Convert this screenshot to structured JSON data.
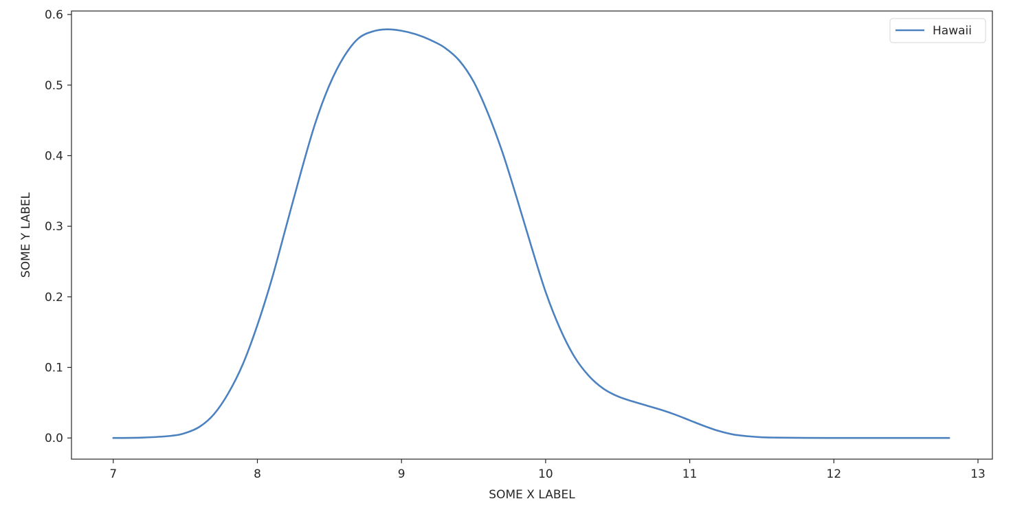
{
  "chart_data": {
    "type": "line",
    "title": "",
    "xlabel": "SOME X LABEL",
    "ylabel": "SOME Y LABEL",
    "xlim": [
      6.71,
      13.1
    ],
    "ylim": [
      -0.03,
      0.605
    ],
    "xticks": [
      7,
      8,
      9,
      10,
      11,
      12,
      13
    ],
    "yticks": [
      0.0,
      0.1,
      0.2,
      0.3,
      0.4,
      0.5,
      0.6
    ],
    "grid": false,
    "legend_position": "top-right",
    "series": [
      {
        "name": "Hawaii",
        "color": "#4c81c0",
        "x": [
          7.0,
          7.2,
          7.4,
          7.5,
          7.6,
          7.7,
          7.8,
          7.9,
          8.0,
          8.1,
          8.2,
          8.3,
          8.4,
          8.5,
          8.6,
          8.7,
          8.8,
          8.9,
          9.0,
          9.1,
          9.2,
          9.3,
          9.4,
          9.5,
          9.6,
          9.7,
          9.8,
          9.9,
          10.0,
          10.1,
          10.2,
          10.3,
          10.4,
          10.5,
          10.6,
          10.7,
          10.8,
          10.9,
          11.0,
          11.1,
          11.2,
          11.3,
          11.4,
          11.5,
          11.6,
          11.8,
          12.0,
          12.2,
          12.4,
          12.6,
          12.8
        ],
        "y": [
          0.0,
          0.0005,
          0.003,
          0.007,
          0.016,
          0.034,
          0.064,
          0.105,
          0.16,
          0.225,
          0.3,
          0.375,
          0.445,
          0.5,
          0.54,
          0.566,
          0.576,
          0.579,
          0.577,
          0.572,
          0.564,
          0.553,
          0.535,
          0.505,
          0.46,
          0.405,
          0.34,
          0.272,
          0.207,
          0.155,
          0.115,
          0.088,
          0.07,
          0.059,
          0.052,
          0.046,
          0.04,
          0.033,
          0.025,
          0.017,
          0.01,
          0.005,
          0.0025,
          0.001,
          0.0005,
          0.0001,
          0.0,
          0.0,
          0.0,
          0.0,
          0.0
        ]
      }
    ]
  }
}
